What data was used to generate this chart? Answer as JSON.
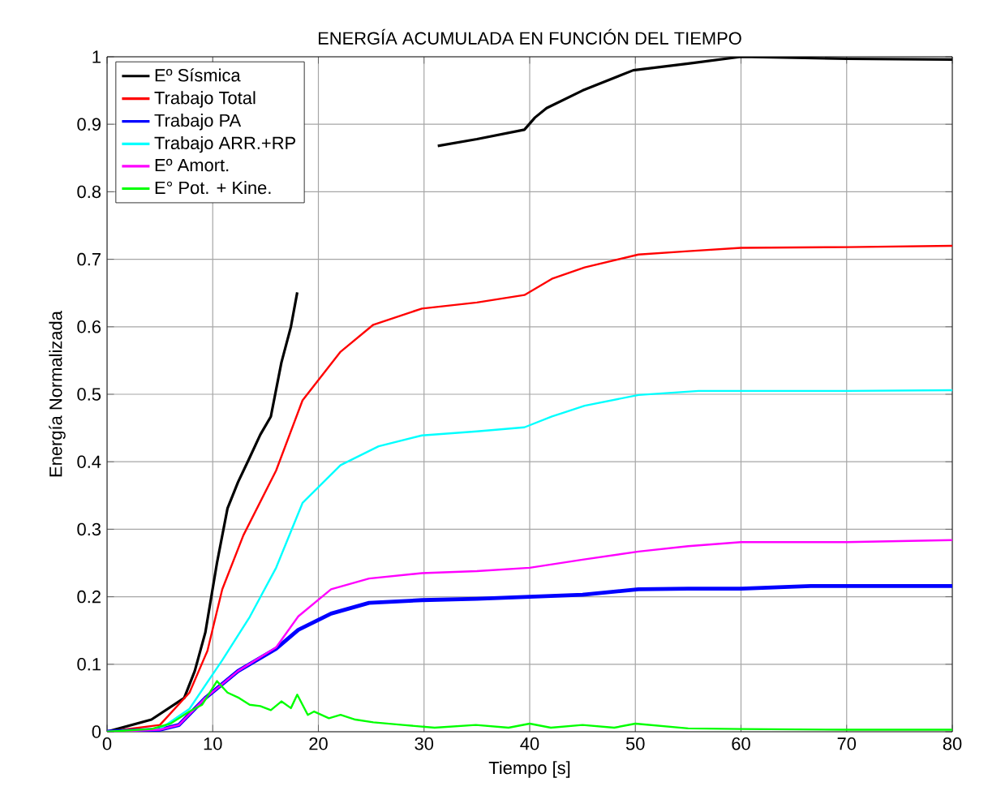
{
  "chart_data": {
    "type": "line",
    "title": "ENERGÍA ACUMULADA EN FUNCIÓN DEL TIEMPO",
    "xlabel": "Tiempo [s]",
    "ylabel": "Energía Normalizada",
    "xlim": [
      0,
      80
    ],
    "ylim": [
      0,
      1
    ],
    "xticks": [
      0,
      10,
      20,
      30,
      40,
      50,
      60,
      70,
      80
    ],
    "yticks": [
      0,
      0.1,
      0.2,
      0.3,
      0.4,
      0.5,
      0.6,
      0.7,
      0.8,
      0.9,
      1
    ],
    "grid": true,
    "legend": "top left",
    "marker": "none",
    "line_style": "solid",
    "series": [
      {
        "name": "Eº Sísmica",
        "color": "#000000",
        "x": [
          0,
          4.2,
          7.3,
          8.3,
          9.3,
          10.4,
          11.4,
          12.4,
          13.4,
          14.5,
          15.5,
          16.5,
          17.4,
          18,
          19,
          31.3,
          35,
          39.5,
          40.5,
          41.6,
          45,
          49.8,
          55,
          60,
          70,
          80
        ],
        "values": [
          0,
          0.018,
          0.05,
          0.09,
          0.147,
          0.25,
          0.331,
          0.37,
          0.403,
          0.44,
          0.467,
          0.547,
          0.6,
          0.651,
          null,
          0.868,
          0.878,
          0.892,
          0.91,
          0.924,
          0.95,
          0.98,
          0.99,
          1.0,
          0.997,
          0.996
        ]
      },
      {
        "name": "Trabajo Total",
        "color": "#ff0000",
        "x": [
          0,
          5,
          7.8,
          9.5,
          10.9,
          12.9,
          16,
          18.5,
          22.1,
          25.2,
          29.8,
          35,
          39.5,
          42.1,
          45.2,
          50.3,
          55,
          60,
          70,
          80
        ],
        "values": [
          0,
          0.01,
          0.058,
          0.12,
          0.211,
          0.291,
          0.387,
          0.491,
          0.563,
          0.603,
          0.627,
          0.636,
          0.647,
          0.671,
          0.688,
          0.707,
          0.712,
          0.717,
          0.718,
          0.72
        ]
      },
      {
        "name": "Trabajo PA",
        "color": "#0000ff",
        "x": [
          0,
          5,
          6.8,
          9.3,
          12.4,
          16,
          18.1,
          21.2,
          24.8,
          29.8,
          35,
          40,
          45,
          50.3,
          55,
          60,
          66.6,
          80
        ],
        "values": [
          0,
          0.003,
          0.01,
          0.05,
          0.09,
          0.123,
          0.151,
          0.175,
          0.191,
          0.195,
          0.197,
          0.2,
          0.203,
          0.211,
          0.212,
          0.212,
          0.216,
          0.216
        ]
      },
      {
        "name": "Trabajo ARR.+RP",
        "color": "#00ffff",
        "x": [
          0,
          5,
          7.8,
          10.9,
          13.5,
          16,
          18.5,
          22.1,
          25.7,
          29.8,
          35,
          39.5,
          42.1,
          45.2,
          50.3,
          56,
          60,
          70,
          80
        ],
        "values": [
          0,
          0.004,
          0.034,
          0.106,
          0.17,
          0.243,
          0.339,
          0.395,
          0.423,
          0.439,
          0.445,
          0.451,
          0.467,
          0.483,
          0.499,
          0.505,
          0.505,
          0.505,
          0.506
        ]
      },
      {
        "name": "Eº Amort.",
        "color": "#ff00ff",
        "x": [
          0,
          5,
          6.8,
          9.3,
          12.4,
          16,
          18.1,
          21.2,
          24.8,
          29.8,
          35,
          40,
          45,
          50.3,
          55,
          60,
          70,
          80
        ],
        "values": [
          0,
          0.003,
          0.01,
          0.05,
          0.09,
          0.125,
          0.171,
          0.211,
          0.227,
          0.235,
          0.238,
          0.243,
          0.255,
          0.267,
          0.275,
          0.281,
          0.281,
          0.284
        ]
      },
      {
        "name": "E° Pot. + Kine.",
        "color": "#00ff00",
        "x": [
          0,
          4.2,
          6,
          7.8,
          9,
          10.4,
          11.4,
          12.5,
          13.5,
          14.5,
          15.5,
          16.5,
          17.4,
          18,
          19,
          19.6,
          21,
          22.1,
          23.5,
          25.2,
          28,
          31,
          34.9,
          38,
          40,
          42,
          45,
          48,
          50,
          55,
          60,
          70,
          80
        ],
        "values": [
          0,
          0.004,
          0.012,
          0.03,
          0.04,
          0.075,
          0.058,
          0.05,
          0.04,
          0.038,
          0.032,
          0.045,
          0.035,
          0.055,
          0.025,
          0.03,
          0.02,
          0.025,
          0.018,
          0.014,
          0.01,
          0.006,
          0.01,
          0.006,
          0.012,
          0.006,
          0.01,
          0.006,
          0.012,
          0.005,
          0.004,
          0.003,
          0.003
        ]
      }
    ]
  }
}
